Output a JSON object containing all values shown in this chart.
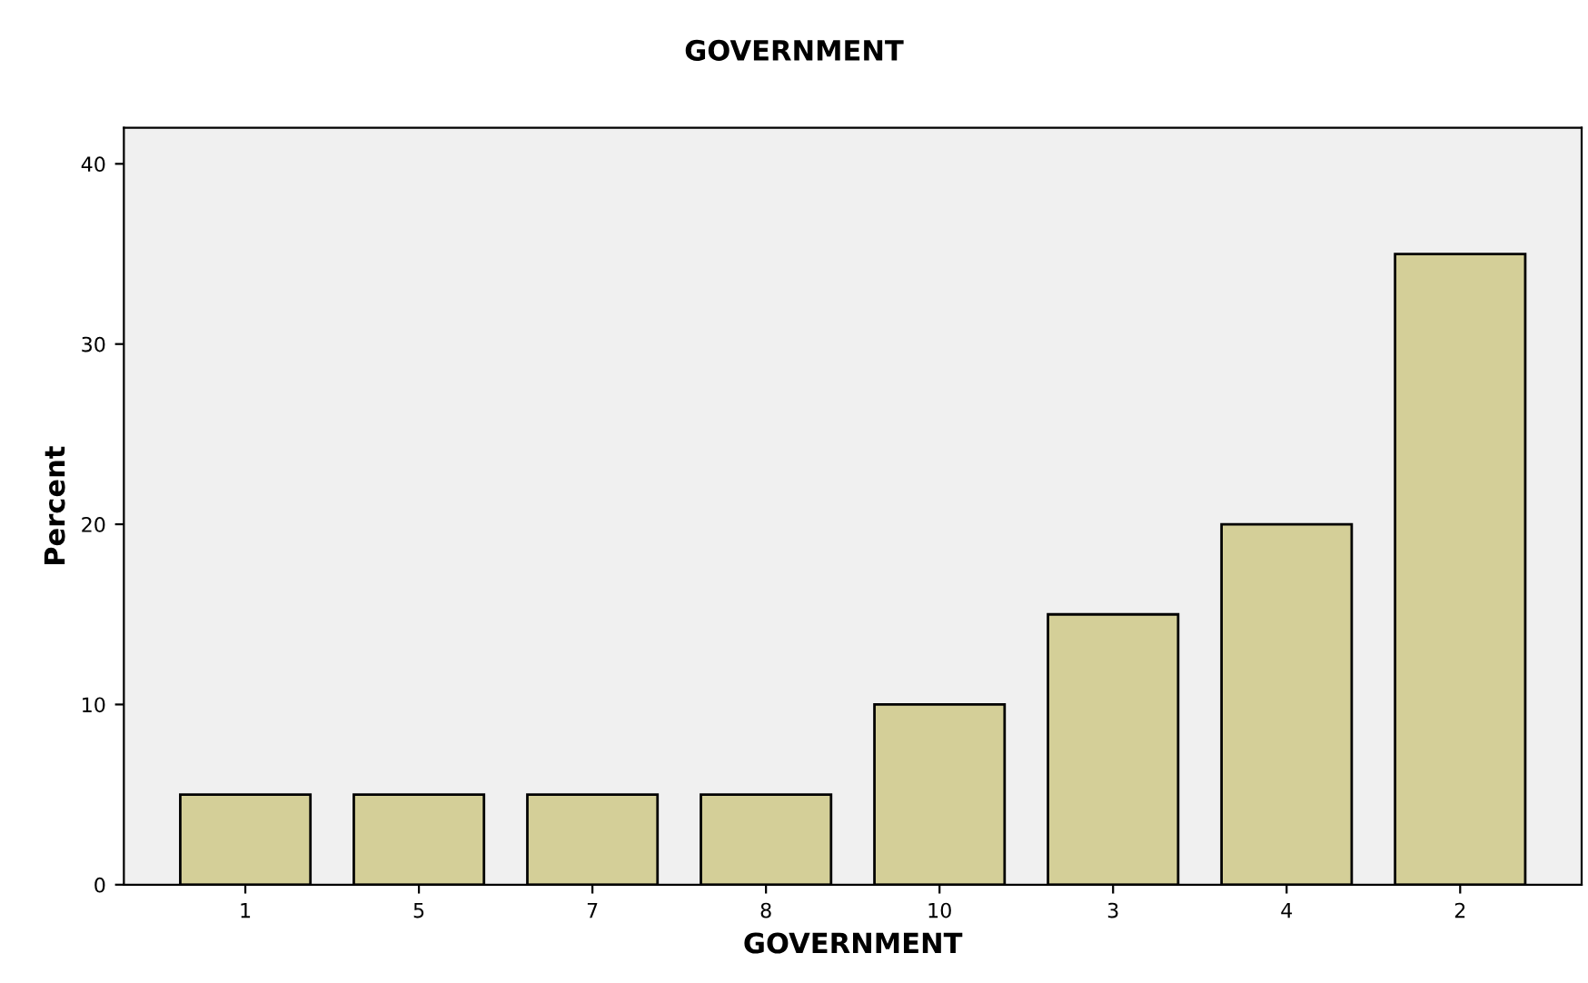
{
  "chart_data": {
    "type": "bar",
    "title": "GOVERNMENT",
    "xlabel": "GOVERNMENT",
    "ylabel": "Percent",
    "categories": [
      "1",
      "5",
      "7",
      "8",
      "10",
      "3",
      "4",
      "2"
    ],
    "values": [
      5,
      5,
      5,
      5,
      10,
      15,
      20,
      35
    ],
    "color": "#d4cf98",
    "ylim": [
      0,
      42
    ],
    "yticks": [
      0,
      10,
      20,
      30,
      40
    ],
    "grid": false
  }
}
